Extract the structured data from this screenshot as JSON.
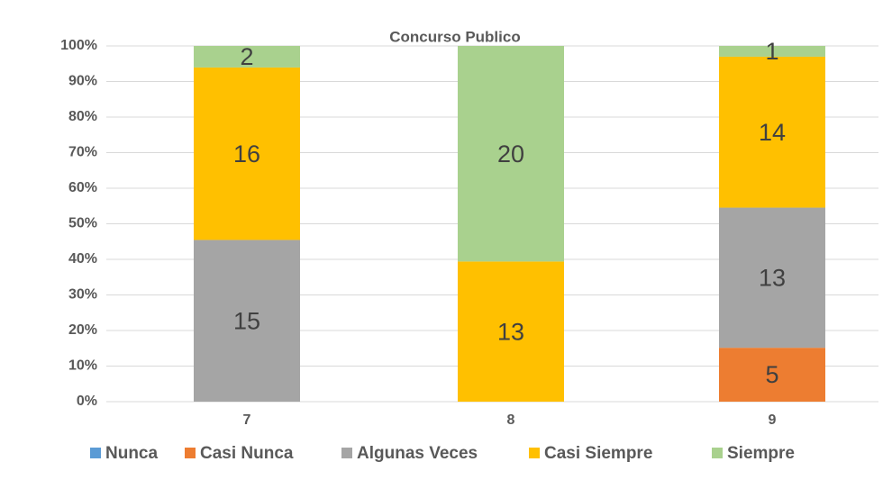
{
  "chart_data": {
    "type": "bar",
    "stacking": "percent",
    "title": "Concurso Publico",
    "categories": [
      "7",
      "8",
      "9"
    ],
    "series": [
      {
        "name": "Nunca",
        "color": "#5b9bd5",
        "values": [
          null,
          null,
          null
        ]
      },
      {
        "name": "Casi Nunca",
        "color": "#ed7d31",
        "values": [
          null,
          null,
          5
        ]
      },
      {
        "name": "Algunas Veces",
        "color": "#a5a5a5",
        "values": [
          15,
          null,
          13
        ]
      },
      {
        "name": "Casi Siempre",
        "color": "#ffc000",
        "values": [
          16,
          13,
          14
        ]
      },
      {
        "name": "Siempre",
        "color": "#a9d18e",
        "values": [
          2,
          20,
          1
        ]
      }
    ],
    "ylim": [
      0,
      100
    ],
    "yticks": [
      {
        "value": 0,
        "label": "0%"
      },
      {
        "value": 10,
        "label": "10%"
      },
      {
        "value": 20,
        "label": "20%"
      },
      {
        "value": 30,
        "label": "30%"
      },
      {
        "value": 40,
        "label": "40%"
      },
      {
        "value": 50,
        "label": "50%"
      },
      {
        "value": 60,
        "label": "60%"
      },
      {
        "value": 70,
        "label": "70%"
      },
      {
        "value": 80,
        "label": "80%"
      },
      {
        "value": 90,
        "label": "90%"
      },
      {
        "value": 100,
        "label": "100%"
      }
    ],
    "grid": true,
    "legend": "bottom"
  }
}
